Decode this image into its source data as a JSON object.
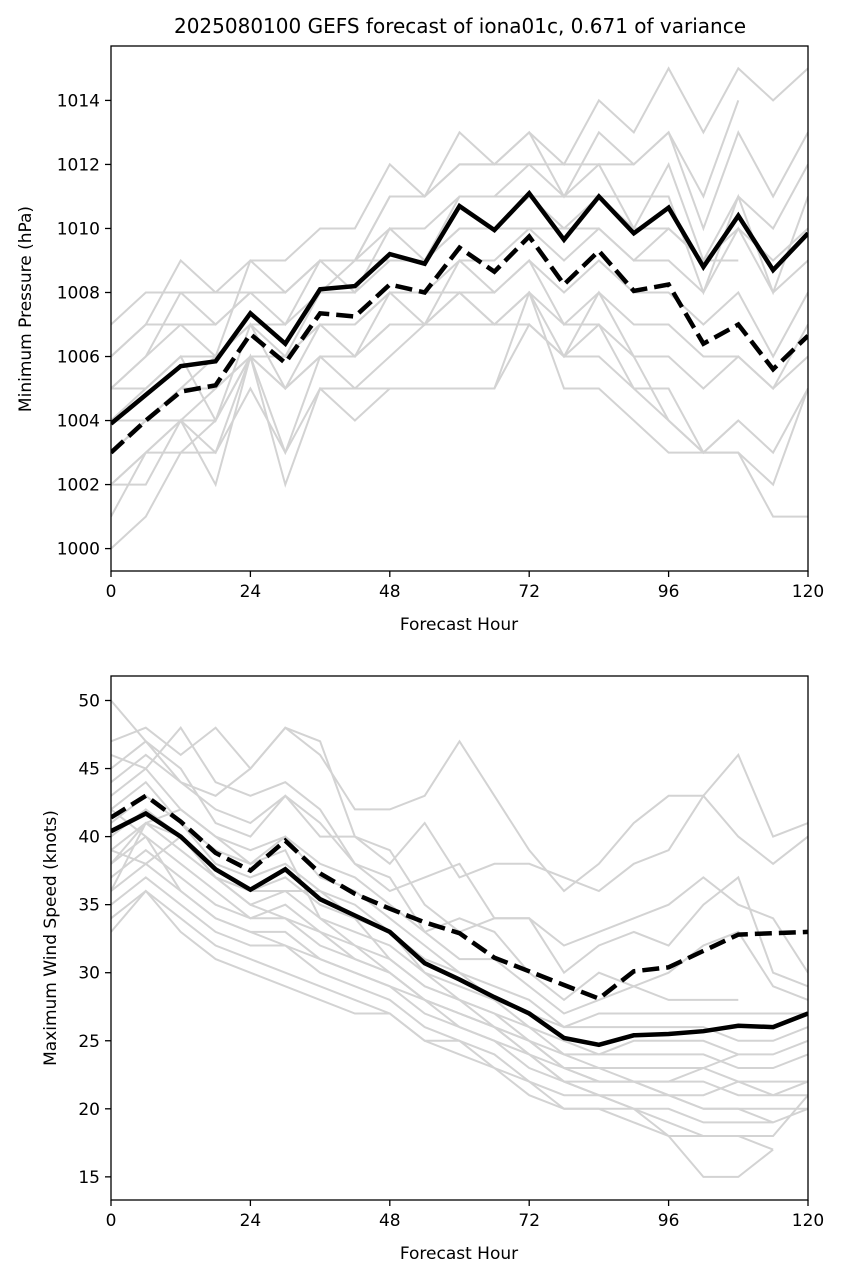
{
  "figure": {
    "title": "2025080100 GEFS forecast of iona01c, 0.671 of variance"
  },
  "colors": {
    "member": "#d3d3d3",
    "mean": "#000000"
  },
  "chart_data": [
    {
      "type": "line",
      "xlabel": "Forecast Hour",
      "ylabel": "Minimum Pressure (hPa)",
      "xlim": [
        0,
        120
      ],
      "ylim": [
        999.3,
        1015.7
      ],
      "x_ticks": [
        0,
        24,
        48,
        72,
        96,
        120
      ],
      "y_ticks": [
        1000,
        1002,
        1004,
        1006,
        1008,
        1010,
        1012,
        1014
      ],
      "grid": false,
      "x": [
        0,
        6,
        12,
        18,
        24,
        30,
        36,
        42,
        48,
        54,
        60,
        66,
        72,
        78,
        84,
        90,
        96,
        102,
        108,
        114,
        120
      ],
      "series": [
        {
          "style": "solid",
          "values": [
            1003.9,
            1004.8,
            1005.7,
            1005.85,
            1007.35,
            1006.4,
            1008.1,
            1008.2,
            1009.2,
            1008.9,
            1010.7,
            1009.95,
            1011.1,
            1009.65,
            1011.0,
            1009.85,
            1010.65,
            1008.8,
            1010.4,
            1008.7,
            1009.85
          ]
        },
        {
          "style": "dashed",
          "values": [
            1003.0,
            1004.0,
            1004.9,
            1005.1,
            1006.7,
            1005.8,
            1007.35,
            1007.25,
            1008.25,
            1008.0,
            1009.4,
            1008.65,
            1009.75,
            1008.25,
            1009.3,
            1008.05,
            1008.25,
            1006.4,
            1007.0,
            1005.6,
            1006.65
          ]
        }
      ],
      "members": [
        [
          1007,
          1008,
          1008,
          1007,
          1008,
          1008,
          1009,
          1009,
          1011,
          1011,
          1013,
          1012,
          1013,
          1012,
          1014,
          1013,
          1015,
          1013,
          1015,
          1014,
          1015
        ],
        [
          1006,
          1007,
          1007,
          1006,
          1009,
          1009,
          1010,
          1010,
          1012,
          1011,
          1012,
          1012,
          1013,
          1011,
          1013,
          1012,
          1013,
          1011,
          1014
        ],
        [
          1005,
          1006,
          1008,
          1008,
          1009,
          1008,
          1009,
          1009,
          1011,
          1011,
          1012,
          1012,
          1012,
          1012,
          1012,
          1012,
          1013,
          1010,
          1013,
          1011,
          1013
        ],
        [
          1006,
          1007,
          1009,
          1008,
          1008,
          1007,
          1009,
          1008,
          1010,
          1009,
          1011,
          1011,
          1012,
          1011,
          1012,
          1010,
          1012,
          1009,
          1011,
          1010,
          1012
        ],
        [
          1005,
          1006,
          1007,
          1007,
          1008,
          1008,
          1009,
          1009,
          1010,
          1010,
          1011,
          1011,
          1011,
          1011,
          1011,
          1011,
          1011,
          1008,
          1011,
          1008,
          1011
        ],
        [
          1004,
          1005,
          1006,
          1006,
          1007,
          1007,
          1008,
          1009,
          1009,
          1009,
          1010,
          1010,
          1011,
          1010,
          1011,
          1010,
          1010,
          1009,
          1010,
          1009,
          1010
        ],
        [
          1004,
          1004,
          1005,
          1006,
          1007,
          1006,
          1008,
          1008,
          1009,
          1009,
          1010,
          1010,
          1010,
          1010,
          1010,
          1009,
          1010,
          1009,
          1009
        ],
        [
          1003,
          1004,
          1005,
          1005,
          1006,
          1006,
          1007,
          1007,
          1008,
          1008,
          1009,
          1009,
          1010,
          1009,
          1010,
          1009,
          1009,
          1008,
          1010,
          1008,
          1009
        ],
        [
          1003,
          1004,
          1004,
          1005,
          1006,
          1006,
          1007,
          1007,
          1008,
          1008,
          1008,
          1008,
          1009,
          1008,
          1009,
          1008,
          1008,
          1007,
          1008,
          1006,
          1008
        ],
        [
          1002,
          1003,
          1004,
          1004,
          1006,
          1005,
          1007,
          1006,
          1008,
          1007,
          1009,
          1008,
          1009,
          1007,
          1008,
          1007,
          1007,
          1006,
          1006,
          1005,
          1007
        ],
        [
          1002,
          1003,
          1004,
          1003,
          1006,
          1005,
          1006,
          1006,
          1007,
          1007,
          1008,
          1007,
          1008,
          1006,
          1007,
          1006,
          1006,
          1005,
          1006,
          1005,
          1006
        ],
        [
          1001,
          1003,
          1003,
          1003,
          1005,
          1003,
          1006,
          1006,
          1007,
          1007,
          1008,
          1007,
          1007,
          1006,
          1006,
          1005,
          1005,
          1003,
          1004,
          1003,
          1005
        ],
        [
          1000,
          1001,
          1003,
          1004,
          1006,
          1002,
          1005,
          1005,
          1006,
          1007,
          1007,
          1007,
          1008,
          1005,
          1005,
          1004,
          1003,
          1003,
          1003,
          1001,
          1001
        ],
        [
          1002,
          1002,
          1004,
          1002,
          1006,
          1003,
          1005,
          1004,
          1005,
          1005,
          1005,
          1005,
          1008,
          1007,
          1007,
          1005,
          1004,
          1003,
          1004
        ],
        [
          1005,
          1005,
          1006,
          1004,
          1007,
          1005,
          1006,
          1005,
          1005,
          1005,
          1005,
          1005,
          1007,
          1006,
          1008,
          1006,
          1004,
          1003,
          1003,
          1002,
          1005
        ]
      ]
    },
    {
      "type": "line",
      "xlabel": "Forecast Hour",
      "ylabel": "Maximum Wind Speed (knots)",
      "xlim": [
        0,
        120
      ],
      "ylim": [
        13.3,
        51.8
      ],
      "x_ticks": [
        0,
        24,
        48,
        72,
        96,
        120
      ],
      "y_ticks": [
        15,
        20,
        25,
        30,
        35,
        40,
        45,
        50
      ],
      "grid": false,
      "x": [
        0,
        6,
        12,
        18,
        24,
        30,
        36,
        42,
        48,
        54,
        60,
        66,
        72,
        78,
        84,
        90,
        96,
        102,
        108,
        114,
        120
      ],
      "series": [
        {
          "style": "solid",
          "values": [
            40.4,
            41.7,
            40.0,
            37.6,
            36.1,
            37.6,
            35.4,
            34.2,
            33.0,
            30.7,
            29.5,
            28.2,
            27.0,
            25.2,
            24.7,
            25.4,
            25.5,
            25.7,
            26.1,
            26.0,
            27.0
          ]
        },
        {
          "style": "dashed",
          "values": [
            41.4,
            43.0,
            41.1,
            38.8,
            37.5,
            39.7,
            37.3,
            35.8,
            34.7,
            33.7,
            32.9,
            31.1,
            30.1,
            29.1,
            28.1,
            30.1,
            30.4,
            31.6,
            32.8,
            32.9,
            33.0
          ]
        }
      ],
      "members": [
        [
          50,
          47,
          44,
          43,
          45,
          48,
          46,
          42,
          42,
          43,
          47,
          43,
          39,
          36,
          38,
          41,
          43,
          43,
          46,
          40,
          41
        ],
        [
          47,
          48,
          46,
          48,
          45,
          48,
          47,
          40,
          38,
          41,
          37,
          38,
          38,
          37,
          36,
          38,
          39,
          43,
          40,
          38,
          40
        ],
        [
          46,
          45,
          48,
          44,
          43,
          44,
          42,
          38,
          36,
          37,
          38,
          34,
          34,
          32,
          33,
          34,
          35,
          37,
          35,
          34,
          30
        ],
        [
          45,
          47,
          45,
          41,
          40,
          43,
          40,
          40,
          39,
          35,
          33,
          34,
          34,
          30,
          32,
          33,
          32,
          35,
          37,
          30,
          29
        ],
        [
          44,
          46,
          44,
          42,
          41,
          43,
          41,
          38,
          37,
          33,
          34,
          33,
          30,
          28,
          30,
          29,
          30,
          32,
          33,
          29,
          28
        ],
        [
          43,
          45,
          42,
          40,
          39,
          40,
          38,
          37,
          35,
          33,
          31,
          31,
          29,
          27,
          28,
          29,
          28,
          28,
          28
        ],
        [
          42,
          44,
          41,
          39,
          38,
          40,
          37,
          36,
          34,
          32,
          30,
          29,
          28,
          26,
          27,
          27,
          27,
          27,
          27,
          27,
          27
        ],
        [
          41,
          43,
          41,
          38,
          37,
          38,
          36,
          35,
          33,
          31,
          30,
          28,
          27,
          26,
          26,
          26,
          26,
          26,
          25,
          25,
          26
        ],
        [
          40,
          42,
          40,
          37,
          36,
          37,
          35,
          34,
          33,
          30,
          29,
          28,
          26,
          25,
          24,
          25,
          25,
          25,
          24,
          24,
          25
        ],
        [
          39,
          41,
          39,
          37,
          35,
          36,
          34,
          33,
          32,
          30,
          28,
          27,
          26,
          24,
          24,
          24,
          24,
          24,
          23,
          23,
          24
        ],
        [
          38,
          40,
          38,
          36,
          34,
          35,
          33,
          32,
          31,
          29,
          28,
          26,
          25,
          23,
          23,
          23,
          23,
          23,
          22,
          22,
          22
        ],
        [
          37,
          39,
          37,
          35,
          34,
          34,
          32,
          31,
          30,
          28,
          27,
          26,
          24,
          22,
          22,
          22,
          22,
          22,
          21,
          21,
          21
        ],
        [
          36,
          38,
          36,
          34,
          33,
          33,
          31,
          30,
          29,
          27,
          26,
          25,
          23,
          22,
          21,
          21,
          21,
          20,
          20,
          20,
          20
        ],
        [
          35,
          37,
          35,
          33,
          32,
          32,
          30,
          29,
          28,
          26,
          25,
          24,
          22,
          21,
          21,
          20,
          20,
          19,
          19,
          19,
          20
        ],
        [
          34,
          36,
          34,
          32,
          31,
          30,
          29,
          28,
          27,
          25,
          25,
          23,
          22,
          20,
          20,
          20,
          19,
          18,
          18,
          18,
          21
        ],
        [
          33,
          36,
          33,
          31,
          30,
          29,
          28,
          27,
          27,
          25,
          24,
          23,
          21,
          20,
          20,
          19,
          18,
          18,
          18,
          17
        ],
        [
          38,
          41,
          40,
          37,
          36,
          36,
          36,
          34,
          31,
          29,
          28,
          27,
          25,
          23,
          22,
          22,
          21,
          20,
          20,
          19
        ],
        [
          36,
          41,
          42,
          40,
          38,
          39,
          34,
          32,
          30,
          28,
          27,
          26,
          24,
          22,
          21,
          20,
          18,
          15,
          15,
          17
        ],
        [
          42,
          40,
          36,
          34,
          33,
          32,
          31,
          30,
          29,
          28,
          27,
          26,
          25,
          24,
          23,
          22,
          21,
          21,
          22,
          21,
          22
        ],
        [
          39,
          38,
          40,
          37,
          35,
          34,
          33,
          31,
          30,
          28,
          26,
          25,
          24,
          23,
          22,
          22,
          22,
          23,
          24
        ]
      ]
    }
  ]
}
